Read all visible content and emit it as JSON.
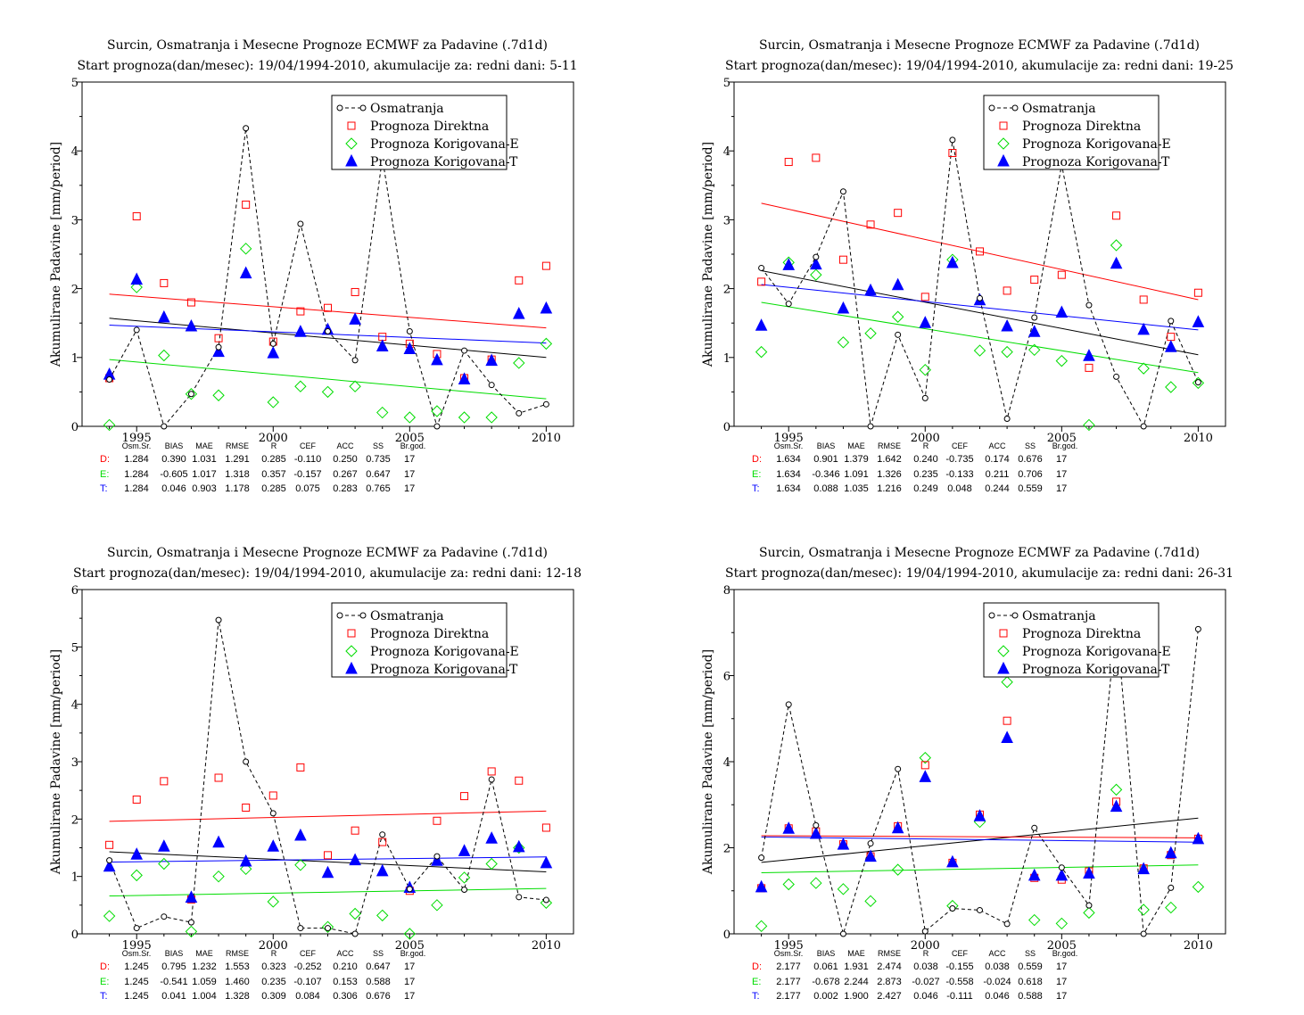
{
  "colors": {
    "obs": "#000000",
    "direct": "#ff0000",
    "corrE": "#00dd00",
    "corrT": "#0000ff"
  },
  "chart_data": [
    {
      "type": "scatter",
      "title": "Surcin, Osmatranja i Mesecne Prognoze ECMWF za Padavine (.7d1d)",
      "subtitle": "Start prognoza(dan/mesec): 19/04/1994-2010, akumulacije za: redni dani: 5-11",
      "ylabel": "Akumulirane Padavine [mm/period]",
      "xlim": [
        1993,
        2011
      ],
      "ylim": [
        0,
        5
      ],
      "xticks": [
        1995,
        2000,
        2005,
        2010
      ],
      "yticks": [
        0,
        1,
        2,
        3,
        4,
        5
      ],
      "legend": [
        "Osmatranja",
        "Prognoza Direktna",
        "Prognoza Korigovana-E",
        "Prognoza Korigovana-T"
      ],
      "x": [
        1994,
        1995,
        1996,
        1997,
        1998,
        1999,
        2000,
        2001,
        2002,
        2003,
        2004,
        2005,
        2006,
        2007,
        2008,
        2009,
        2010
      ],
      "series": [
        {
          "name": "Osmatranja",
          "values": [
            0.68,
            1.4,
            0.0,
            0.47,
            1.15,
            4.33,
            1.2,
            2.94,
            1.38,
            0.96,
            3.9,
            1.38,
            0.0,
            1.1,
            0.6,
            0.19,
            0.32
          ]
        },
        {
          "name": "Prognoza Direktna",
          "values": [
            0.7,
            3.05,
            2.08,
            1.8,
            1.28,
            3.22,
            1.23,
            1.67,
            1.72,
            1.95,
            1.3,
            1.2,
            1.05,
            0.7,
            0.97,
            2.12,
            2.33
          ]
        },
        {
          "name": "Prognoza Korigovana-E",
          "values": [
            0.02,
            2.02,
            1.03,
            0.47,
            0.45,
            2.58,
            0.35,
            0.58,
            0.5,
            0.58,
            0.2,
            0.13,
            0.22,
            0.13,
            0.13,
            0.92,
            1.2
          ]
        },
        {
          "name": "Prognoza Korigovana-T",
          "values": [
            0.75,
            2.13,
            1.58,
            1.45,
            1.08,
            2.22,
            1.06,
            1.37,
            1.4,
            1.55,
            1.16,
            1.12,
            0.96,
            0.68,
            0.95,
            1.63,
            1.71
          ]
        }
      ],
      "trends": {
        "obs": [
          1.57,
          1.0
        ],
        "direct": [
          1.92,
          1.43
        ],
        "corrE": [
          0.97,
          0.4
        ],
        "corrT": [
          1.47,
          1.21
        ]
      },
      "stats": {
        "headers": [
          "Osm.Sr.",
          "BIAS",
          "MAE",
          "RMSE",
          "R",
          "CEF",
          "ACC",
          "SS",
          "Br.god."
        ],
        "rows": [
          {
            "label": "D:",
            "values": [
              "1.284",
              "0.390",
              "1.031",
              "1.291",
              "0.285",
              "-0.110",
              "0.250",
              "0.735",
              "17"
            ]
          },
          {
            "label": "E:",
            "values": [
              "1.284",
              "-0.605",
              "1.017",
              "1.318",
              "0.357",
              "-0.157",
              "0.267",
              "0.647",
              "17"
            ]
          },
          {
            "label": "T:",
            "values": [
              "1.284",
              "0.046",
              "0.903",
              "1.178",
              "0.285",
              "0.075",
              "0.283",
              "0.765",
              "17"
            ]
          }
        ]
      }
    },
    {
      "type": "scatter",
      "title": "Surcin, Osmatranja i Mesecne Prognoze ECMWF za Padavine (.7d1d)",
      "subtitle": "Start prognoza(dan/mesec): 19/04/1994-2010, akumulacije za: redni dani: 19-25",
      "ylabel": "Akumulirane Padavine [mm/period]",
      "xlim": [
        1993,
        2011
      ],
      "ylim": [
        0,
        5
      ],
      "xticks": [
        1995,
        2000,
        2005,
        2010
      ],
      "yticks": [
        0,
        1,
        2,
        3,
        4,
        5
      ],
      "legend": [
        "Osmatranja",
        "Prognoza Direktna",
        "Prognoza Korigovana-E",
        "Prognoza Korigovana-T"
      ],
      "x": [
        1994,
        1995,
        1996,
        1997,
        1998,
        1999,
        2000,
        2001,
        2002,
        2003,
        2004,
        2005,
        2006,
        2007,
        2008,
        2009,
        2010
      ],
      "series": [
        {
          "name": "Osmatranja",
          "values": [
            2.3,
            1.78,
            2.46,
            3.41,
            0.0,
            1.33,
            0.41,
            4.16,
            1.86,
            0.11,
            1.58,
            3.8,
            1.76,
            0.72,
            0.0,
            1.53,
            0.64
          ]
        },
        {
          "name": "Prognoza Direktna",
          "values": [
            2.1,
            3.84,
            3.9,
            2.42,
            2.93,
            3.1,
            1.88,
            3.97,
            2.54,
            1.97,
            2.13,
            2.2,
            0.85,
            3.06,
            1.84,
            1.3,
            1.94
          ]
        },
        {
          "name": "Prognoza Korigovana-E",
          "values": [
            1.08,
            2.38,
            2.2,
            1.22,
            1.35,
            1.59,
            0.82,
            2.42,
            1.1,
            1.08,
            1.11,
            0.95,
            0.02,
            2.63,
            0.84,
            0.57,
            0.63
          ]
        },
        {
          "name": "Prognoza Korigovana-T",
          "values": [
            1.46,
            2.34,
            2.35,
            1.71,
            1.97,
            2.05,
            1.5,
            2.37,
            1.83,
            1.45,
            1.37,
            1.65,
            1.02,
            2.36,
            1.4,
            1.15,
            1.51
          ]
        }
      ],
      "trends": {
        "obs": [
          2.26,
          1.04
        ],
        "direct": [
          3.24,
          1.84
        ],
        "corrE": [
          1.8,
          0.78
        ],
        "corrT": [
          2.06,
          1.4
        ]
      },
      "stats": {
        "headers": [
          "Osm.Sr.",
          "BIAS",
          "MAE",
          "RMSE",
          "R",
          "CEF",
          "ACC",
          "SS",
          "Br.god."
        ],
        "rows": [
          {
            "label": "D:",
            "values": [
              "1.634",
              "0.901",
              "1.379",
              "1.642",
              "0.240",
              "-0.735",
              "0.174",
              "0.676",
              "17"
            ]
          },
          {
            "label": "E:",
            "values": [
              "1.634",
              "-0.346",
              "1.091",
              "1.326",
              "0.235",
              "-0.133",
              "0.211",
              "0.706",
              "17"
            ]
          },
          {
            "label": "T:",
            "values": [
              "1.634",
              "0.088",
              "1.035",
              "1.216",
              "0.249",
              "0.048",
              "0.244",
              "0.559",
              "17"
            ]
          }
        ]
      }
    },
    {
      "type": "scatter",
      "title": "Surcin, Osmatranja i Mesecne Prognoze ECMWF za Padavine (.7d1d)",
      "subtitle": "Start prognoza(dan/mesec): 19/04/1994-2010, akumulacije za: redni dani: 12-18",
      "ylabel": "Akumulirane Padavine [mm/period]",
      "xlim": [
        1993,
        2011
      ],
      "ylim": [
        0,
        6
      ],
      "xticks": [
        1995,
        2000,
        2005,
        2010
      ],
      "yticks": [
        0,
        1,
        2,
        3,
        4,
        5,
        6
      ],
      "legend": [
        "Osmatranja",
        "Prognoza Direktna",
        "Prognoza Korigovana-E",
        "Prognoza Korigovana-T"
      ],
      "x": [
        1994,
        1995,
        1996,
        1997,
        1998,
        1999,
        2000,
        2001,
        2002,
        2003,
        2004,
        2005,
        2006,
        2007,
        2008,
        2009,
        2010
      ],
      "series": [
        {
          "name": "Osmatranja",
          "values": [
            1.28,
            0.1,
            0.3,
            0.2,
            5.47,
            3.0,
            2.1,
            0.1,
            0.1,
            0.0,
            1.73,
            0.78,
            1.35,
            0.77,
            2.69,
            0.64,
            0.59
          ]
        },
        {
          "name": "Prognoza Direktna",
          "values": [
            1.55,
            2.34,
            2.66,
            0.6,
            2.72,
            2.2,
            2.41,
            2.9,
            1.37,
            1.8,
            1.6,
            0.75,
            1.97,
            2.4,
            2.83,
            2.67,
            1.85
          ]
        },
        {
          "name": "Prognoza Korigovana-E",
          "values": [
            0.31,
            1.02,
            1.22,
            0.04,
            1.0,
            1.13,
            0.56,
            1.2,
            0.12,
            0.35,
            0.32,
            0.0,
            0.5,
            0.98,
            1.22,
            1.5,
            0.54
          ]
        },
        {
          "name": "Prognoza Korigovana-T",
          "values": [
            1.17,
            1.38,
            1.52,
            0.63,
            1.59,
            1.26,
            1.52,
            1.71,
            1.06,
            1.28,
            1.09,
            0.8,
            1.27,
            1.44,
            1.66,
            1.51,
            1.23
          ]
        }
      ],
      "trends": {
        "obs": [
          1.43,
          1.08
        ],
        "direct": [
          1.96,
          2.14
        ],
        "corrE": [
          0.66,
          0.79
        ],
        "corrT": [
          1.25,
          1.34
        ]
      },
      "stats": {
        "headers": [
          "Osm.Sr.",
          "BIAS",
          "MAE",
          "RMSE",
          "R",
          "CEF",
          "ACC",
          "SS",
          "Br.god."
        ],
        "rows": [
          {
            "label": "D:",
            "values": [
              "1.245",
              "0.795",
              "1.232",
              "1.553",
              "0.323",
              "-0.252",
              "0.210",
              "0.647",
              "17"
            ]
          },
          {
            "label": "E:",
            "values": [
              "1.245",
              "-0.541",
              "1.059",
              "1.460",
              "0.235",
              "-0.107",
              "0.153",
              "0.588",
              "17"
            ]
          },
          {
            "label": "T:",
            "values": [
              "1.245",
              "0.041",
              "1.004",
              "1.328",
              "0.309",
              "0.084",
              "0.306",
              "0.676",
              "17"
            ]
          }
        ]
      }
    },
    {
      "type": "scatter",
      "title": "Surcin, Osmatranja i Mesecne Prognoze ECMWF za Padavine (.7d1d)",
      "subtitle": "Start prognoza(dan/mesec): 19/04/1994-2010, akumulacije za: redni dani: 26-31",
      "ylabel": "Akumulirane Padavine [mm/period]",
      "xlim": [
        1993,
        2011
      ],
      "ylim": [
        0,
        8
      ],
      "xticks": [
        1995,
        2000,
        2005,
        2010
      ],
      "yticks": [
        0,
        2,
        4,
        6,
        8
      ],
      "legend": [
        "Osmatranja",
        "Prognoza Direktna",
        "Prognoza Korigovana-E",
        "Prognoza Korigovana-T"
      ],
      "x": [
        1994,
        1995,
        1996,
        1997,
        1998,
        1999,
        2000,
        2001,
        2002,
        2003,
        2004,
        2005,
        2006,
        2007,
        2008,
        2009,
        2010
      ],
      "series": [
        {
          "name": "Osmatranja",
          "values": [
            1.77,
            5.33,
            2.52,
            0.0,
            2.1,
            3.83,
            0.06,
            0.59,
            0.55,
            0.23,
            2.46,
            1.54,
            0.66,
            7.3,
            0.0,
            1.07,
            7.08
          ]
        },
        {
          "name": "Prognoza Direktna",
          "values": [
            1.06,
            2.45,
            2.38,
            2.08,
            1.8,
            2.5,
            3.92,
            1.65,
            2.77,
            4.95,
            1.3,
            1.26,
            1.45,
            3.07,
            1.52,
            1.83,
            2.21
          ]
        },
        {
          "name": "Prognoza Korigovana-E",
          "values": [
            0.18,
            1.15,
            1.18,
            1.04,
            0.76,
            1.49,
            4.09,
            0.65,
            2.6,
            5.85,
            0.32,
            0.24,
            0.49,
            3.35,
            0.56,
            0.61,
            1.09
          ]
        },
        {
          "name": "Prognoza Korigovana-T",
          "values": [
            1.08,
            2.44,
            2.32,
            2.07,
            1.79,
            2.45,
            3.64,
            1.66,
            2.73,
            4.55,
            1.35,
            1.35,
            1.4,
            2.95,
            1.5,
            1.87,
            2.2
          ]
        }
      ],
      "trends": {
        "obs": [
          1.66,
          2.69
        ],
        "direct": [
          2.28,
          2.23
        ],
        "corrE": [
          1.42,
          1.6
        ],
        "corrT": [
          2.25,
          2.13
        ]
      },
      "stats": {
        "headers": [
          "Osm.Sr.",
          "BIAS",
          "MAE",
          "RMSE",
          "R",
          "CEF",
          "ACC",
          "SS",
          "Br.god."
        ],
        "rows": [
          {
            "label": "D:",
            "values": [
              "2.177",
              "0.061",
              "1.931",
              "2.474",
              "0.038",
              "-0.155",
              "0.038",
              "0.559",
              "17"
            ]
          },
          {
            "label": "E:",
            "values": [
              "2.177",
              "-0.678",
              "2.244",
              "2.873",
              "-0.027",
              "-0.558",
              "-0.024",
              "0.618",
              "17"
            ]
          },
          {
            "label": "T:",
            "values": [
              "2.177",
              "0.002",
              "1.900",
              "2.427",
              "0.046",
              "-0.111",
              "0.046",
              "0.588",
              "17"
            ]
          }
        ]
      }
    }
  ]
}
